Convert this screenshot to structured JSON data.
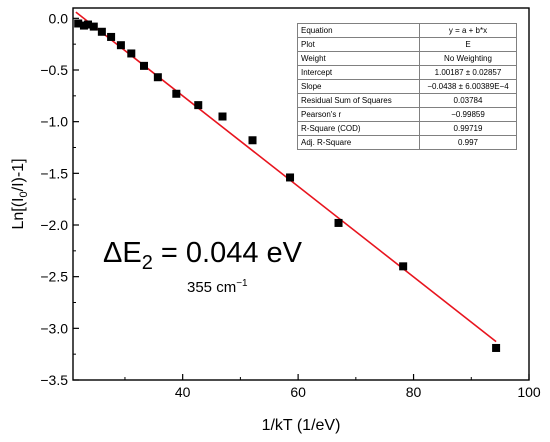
{
  "chart_data": {
    "type": "scatter",
    "xlabel": "1/kT (1/eV)",
    "ylabel_parts": [
      "Ln[(I",
      "0",
      "/I)-1]"
    ],
    "xlim": [
      21,
      100
    ],
    "ylim": [
      -3.5,
      0.1
    ],
    "x_ticks": [
      40,
      60,
      80,
      100
    ],
    "y_ticks": [
      0.0,
      -0.5,
      -1.0,
      -1.5,
      -2.0,
      -2.5,
      -3.0,
      -3.5
    ],
    "y_tick_labels": [
      "0.0",
      "−0.5",
      "−1.0",
      "−1.5",
      "−2.0",
      "−2.5",
      "−3.0",
      "−3.5"
    ],
    "series": [
      {
        "marker": "square",
        "color": "#000000",
        "x": [
          21.9,
          22.9,
          23.6,
          24.6,
          26.0,
          27.6,
          29.3,
          31.1,
          33.3,
          35.7,
          38.9,
          42.7,
          46.9,
          52.1,
          58.6,
          67.0,
          78.2,
          94.3
        ],
        "y": [
          -0.05,
          -0.07,
          -0.06,
          -0.08,
          -0.13,
          -0.18,
          -0.26,
          -0.34,
          -0.46,
          -0.57,
          -0.73,
          -0.84,
          -0.95,
          -1.18,
          -1.54,
          -1.98,
          -2.4,
          -3.19
        ]
      }
    ],
    "fit_line": {
      "color": "#e8141e",
      "intercept": 1.00187,
      "slope": -0.0438,
      "x_range": [
        21.5,
        94.3
      ]
    },
    "grid": false,
    "fit_table": [
      [
        "Equation",
        "y = a + b*x"
      ],
      [
        "Plot",
        "E"
      ],
      [
        "Weight",
        "No Weighting"
      ],
      [
        "Intercept",
        "1.00187 ± 0.02857"
      ],
      [
        "Slope",
        "−0.0438 ± 6.00389E−4"
      ],
      [
        "Residual Sum of Squares",
        "0.03784"
      ],
      [
        "Pearson's r",
        "−0.99859"
      ],
      [
        "R-Square (COD)",
        "0.99719"
      ],
      [
        "Adj. R-Square",
        "0.997"
      ]
    ],
    "annotation": {
      "main_prefix": "ΔE",
      "main_sub": "2",
      "main_suffix": " = 0.044 eV",
      "sub_prefix": "355 cm",
      "sub_sup": "−1"
    }
  }
}
